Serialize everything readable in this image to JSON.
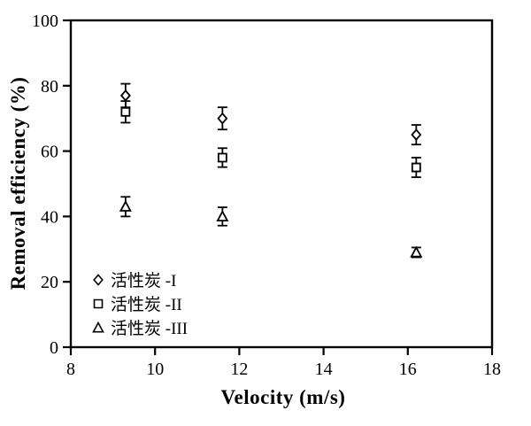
{
  "figure": {
    "background_color": "#ffffff",
    "foreground_color": "#000000"
  },
  "chart_data": {
    "type": "scatter",
    "title": "",
    "xlabel": "Velocity (m/s)",
    "ylabel": "Removal efficiency (%)",
    "xlim": [
      8,
      18
    ],
    "ylim": [
      0,
      100
    ],
    "x_ticks": [
      8,
      10,
      12,
      14,
      16,
      18
    ],
    "y_ticks": [
      0,
      20,
      40,
      60,
      80,
      100
    ],
    "grid": false,
    "frame": "full-box",
    "legend_position": "inside-lower-left",
    "marker_fill": "open",
    "error_bars": "vertical-with-caps",
    "series": [
      {
        "name": "活性炭 -I",
        "marker": "diamond",
        "x": [
          9.3,
          11.6,
          16.2
        ],
        "y": [
          77,
          70,
          65
        ],
        "yerr": [
          3.6,
          3.4,
          3.0
        ]
      },
      {
        "name": "活性炭 -II",
        "marker": "square",
        "x": [
          9.3,
          11.6,
          16.2
        ],
        "y": [
          72,
          58,
          55
        ],
        "yerr": [
          3.3,
          2.9,
          3.0
        ]
      },
      {
        "name": "活性炭 -III",
        "marker": "triangle",
        "x": [
          9.3,
          11.6,
          16.2
        ],
        "y": [
          43,
          40,
          29
        ],
        "yerr": [
          3.0,
          2.8,
          1.5
        ]
      }
    ]
  }
}
